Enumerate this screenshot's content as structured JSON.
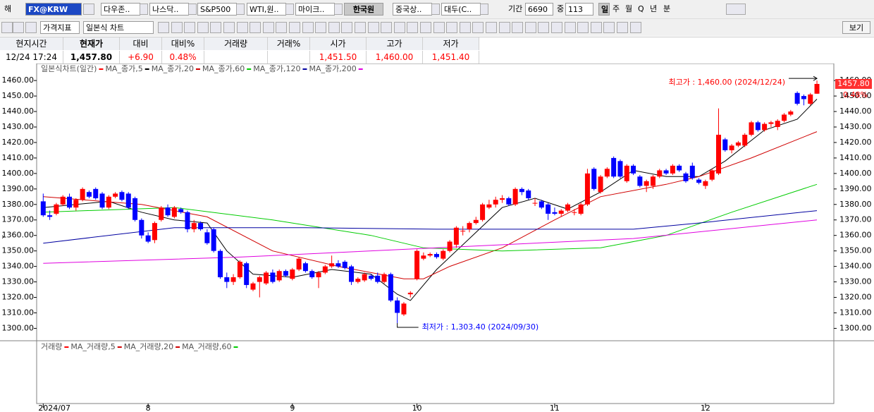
{
  "toolbar": {
    "row1": [
      "해",
      "FX@KRW",
      "다우존..",
      "나스닥..",
      "S&P500",
      "WTI,원..",
      "마이크..",
      "한국원",
      "중국상..",
      "대두(C..",
      "기간",
      "6690",
      "중",
      "113",
      "일",
      "주",
      "월",
      "Q",
      "년",
      "분"
    ],
    "row2": [
      "가격지표",
      "일본식 차트",
      "보기"
    ]
  },
  "quote": [
    {
      "header": "현지시간",
      "value": "12/24  17:24"
    },
    {
      "header": "현재가",
      "value": "1,457.80"
    },
    {
      "header": "대비",
      "value": "+6.90"
    },
    {
      "header": "대비%",
      "value": "0.48%"
    },
    {
      "header": "거래량"
    },
    {
      "header": "거래%"
    },
    {
      "header": "시가",
      "value": "1,451.50"
    },
    {
      "header": "고가",
      "value": "1,460.00"
    },
    {
      "header": "저가",
      "value": "1,451.40"
    }
  ],
  "chart_data": {
    "type": "candlestick",
    "title": "일본식차트(일간)",
    "up_color": "#ff0000",
    "down_color": "#0000ff",
    "title_marker_color": "#ff0000",
    "xlim": [
      -1,
      119.5
    ],
    "ylim": [
      1292,
      1471
    ],
    "yticks": [
      {
        "value": 1300,
        "label": "1300.00"
      },
      {
        "value": 1310,
        "label": "1310.00"
      },
      {
        "value": 1320,
        "label": "1320.00"
      },
      {
        "value": 1330,
        "label": "1330.00"
      },
      {
        "value": 1340,
        "label": "1340.00"
      },
      {
        "value": 1350,
        "label": "1350.00"
      },
      {
        "value": 1360,
        "label": "1360.00"
      },
      {
        "value": 1370,
        "label": "1370.00"
      },
      {
        "value": 1380,
        "label": "1380.00"
      },
      {
        "value": 1390,
        "label": "1390.00"
      },
      {
        "value": 1400,
        "label": "1400.00"
      },
      {
        "value": 1410,
        "label": "1410.00"
      },
      {
        "value": 1420,
        "label": "1420.00"
      },
      {
        "value": 1430,
        "label": "1430.00"
      },
      {
        "value": 1440,
        "label": "1440.00"
      },
      {
        "value": 1450,
        "label": "1450.00"
      },
      {
        "value": 1460,
        "label": "1460.00"
      }
    ],
    "xticks": [
      {
        "value": 0,
        "label": "2024/07"
      },
      {
        "value": 16,
        "label": "8"
      },
      {
        "value": 38,
        "label": "9"
      },
      {
        "value": 57,
        "label": "10"
      },
      {
        "value": 78,
        "label": "11"
      },
      {
        "value": 101,
        "label": "12"
      }
    ],
    "candles": [
      [
        1382,
        1387,
        1372,
        1373
      ],
      [
        1373,
        1376,
        1370,
        1372
      ],
      [
        1374,
        1381,
        1373,
        1380
      ],
      [
        1380,
        1386,
        1379,
        1385
      ],
      [
        1385,
        1387,
        1377,
        1378
      ],
      [
        1378,
        1384,
        1376,
        1383
      ],
      [
        1383,
        1391,
        1382,
        1390
      ],
      [
        1388,
        1389,
        1384,
        1385
      ],
      [
        1390,
        1391,
        1383,
        1384
      ],
      [
        1387,
        1388,
        1377,
        1378
      ],
      [
        1378,
        1386,
        1377,
        1385
      ],
      [
        1385,
        1388,
        1384,
        1387
      ],
      [
        1388,
        1389,
        1382,
        1383
      ],
      [
        1387,
        1388,
        1377,
        1378
      ],
      [
        1384,
        1385,
        1369,
        1370
      ],
      [
        1370,
        1371,
        1358,
        1360
      ],
      [
        1360,
        1362,
        1355,
        1356
      ],
      [
        1357,
        1369,
        1355,
        1368
      ],
      [
        1370,
        1379,
        1369,
        1378
      ],
      [
        1378,
        1380,
        1372,
        1373
      ],
      [
        1372,
        1379,
        1371,
        1378
      ],
      [
        1377,
        1378,
        1374,
        1375
      ],
      [
        1375,
        1376,
        1362,
        1364
      ],
      [
        1364,
        1370,
        1362,
        1368
      ],
      [
        1368,
        1369,
        1363,
        1364
      ],
      [
        1362,
        1364,
        1354,
        1355
      ],
      [
        1364,
        1365,
        1349,
        1350
      ],
      [
        1350,
        1351,
        1332,
        1333
      ],
      [
        1333,
        1336,
        1326,
        1330
      ],
      [
        1330,
        1335,
        1328,
        1333
      ],
      [
        1333,
        1344,
        1332,
        1343
      ],
      [
        1342,
        1343,
        1326,
        1328
      ],
      [
        1325,
        1330,
        1324,
        1329
      ],
      [
        1330,
        1334,
        1320,
        1333
      ],
      [
        1329,
        1337,
        1328,
        1336
      ],
      [
        1336,
        1338,
        1329,
        1330
      ],
      [
        1331,
        1338,
        1330,
        1337
      ],
      [
        1337,
        1338,
        1333,
        1334
      ],
      [
        1332,
        1339,
        1331,
        1338
      ],
      [
        1338,
        1346,
        1337,
        1345
      ],
      [
        1342,
        1343,
        1336,
        1337
      ],
      [
        1337,
        1338,
        1332,
        1333
      ],
      [
        1333,
        1337,
        1326,
        1336
      ],
      [
        1336,
        1341,
        1335,
        1340
      ],
      [
        1340,
        1347,
        1339,
        1342
      ],
      [
        1342,
        1344,
        1339,
        1340
      ],
      [
        1343,
        1344,
        1338,
        1339
      ],
      [
        1340,
        1341,
        1328,
        1330
      ],
      [
        1330,
        1333,
        1329,
        1332
      ],
      [
        1331,
        1336,
        1330,
        1335
      ],
      [
        1334,
        1335,
        1331,
        1332
      ],
      [
        1334,
        1336,
        1329,
        1330
      ],
      [
        1330,
        1336,
        1329,
        1335
      ],
      [
        1335,
        1336,
        1317,
        1318
      ],
      [
        1318,
        1320,
        1303.4,
        1310
      ],
      [
        1309,
        1317,
        1308,
        1316
      ],
      [
        1322,
        1324,
        1320,
        1323
      ],
      [
        1332,
        1351,
        1331,
        1350
      ],
      [
        1345,
        1349,
        1344,
        1347
      ],
      [
        1347,
        1349,
        1346,
        1348
      ],
      [
        1348,
        1349,
        1345,
        1346
      ],
      [
        1345,
        1351,
        1344,
        1350
      ],
      [
        1350,
        1357,
        1349,
        1356
      ],
      [
        1354,
        1366,
        1352,
        1365
      ],
      [
        1363,
        1366,
        1360,
        1363
      ],
      [
        1364,
        1369,
        1362,
        1368
      ],
      [
        1368,
        1372,
        1367,
        1370
      ],
      [
        1370,
        1381,
        1369,
        1380
      ],
      [
        1378,
        1383,
        1377,
        1380
      ],
      [
        1380,
        1385,
        1378,
        1383
      ],
      [
        1383,
        1386,
        1381,
        1384
      ],
      [
        1384,
        1385,
        1379,
        1380
      ],
      [
        1380,
        1391,
        1379,
        1390
      ],
      [
        1390,
        1391,
        1386,
        1388
      ],
      [
        1389,
        1390,
        1383,
        1384
      ],
      [
        1381,
        1384,
        1379,
        1381
      ],
      [
        1382,
        1383,
        1377,
        1378
      ],
      [
        1380,
        1381,
        1370,
        1374
      ],
      [
        1375,
        1378,
        1373,
        1374
      ],
      [
        1374,
        1377,
        1372,
        1376
      ],
      [
        1376,
        1381,
        1375,
        1380
      ],
      [
        1375,
        1377,
        1373,
        1375
      ],
      [
        1374,
        1381,
        1373,
        1380
      ],
      [
        1380,
        1403,
        1379,
        1400
      ],
      [
        1403,
        1404,
        1389,
        1390
      ],
      [
        1388,
        1399,
        1387,
        1398
      ],
      [
        1398,
        1404,
        1397,
        1403
      ],
      [
        1410,
        1411,
        1397,
        1398
      ],
      [
        1408,
        1409,
        1397,
        1398
      ],
      [
        1395,
        1406,
        1394,
        1405
      ],
      [
        1405,
        1406,
        1399,
        1400
      ],
      [
        1398,
        1399,
        1391,
        1392
      ],
      [
        1392,
        1396,
        1388,
        1395
      ],
      [
        1392,
        1399,
        1390,
        1398
      ],
      [
        1398,
        1403,
        1397,
        1402
      ],
      [
        1402,
        1403,
        1399,
        1400
      ],
      [
        1400,
        1406,
        1399,
        1405
      ],
      [
        1405,
        1406,
        1401,
        1402
      ],
      [
        1400,
        1401,
        1394,
        1395
      ],
      [
        1405,
        1407,
        1396,
        1397
      ],
      [
        1396,
        1397,
        1393,
        1394
      ],
      [
        1392,
        1396,
        1390,
        1395
      ],
      [
        1396,
        1403,
        1395,
        1402
      ],
      [
        1400,
        1442,
        1399,
        1425
      ],
      [
        1422,
        1423,
        1414,
        1415
      ],
      [
        1415,
        1419,
        1413,
        1418
      ],
      [
        1418,
        1421,
        1417,
        1420
      ],
      [
        1418,
        1426,
        1417,
        1425
      ],
      [
        1425,
        1434,
        1424,
        1433
      ],
      [
        1433,
        1434,
        1427,
        1428
      ],
      [
        1428,
        1433,
        1427,
        1432
      ],
      [
        1432,
        1434,
        1430,
        1433
      ],
      [
        1430,
        1435,
        1428,
        1434
      ],
      [
        1434,
        1439,
        1433,
        1438
      ],
      [
        1438,
        1441,
        1437,
        1440
      ],
      [
        1452,
        1453,
        1444,
        1445
      ],
      [
        1450,
        1451,
        1444,
        1448
      ],
      [
        1445,
        1452,
        1444,
        1451
      ],
      [
        1451.5,
        1460,
        1451.4,
        1457.8
      ]
    ],
    "series": [
      {
        "name": "MA_종가,5",
        "color": "#000000",
        "x": [
          0,
          10,
          15,
          20,
          25,
          28,
          32,
          38,
          44,
          50,
          54,
          56,
          60,
          65,
          70,
          75,
          80,
          85,
          90,
          95,
          100,
          104,
          110,
          115,
          118
        ],
        "values": [
          1378,
          1382,
          1375,
          1370,
          1368,
          1350,
          1335,
          1333,
          1338,
          1335,
          1322,
          1318,
          1338,
          1358,
          1378,
          1384,
          1377,
          1388,
          1402,
          1398,
          1398,
          1408,
          1428,
          1435,
          1448
        ]
      },
      {
        "name": "MA_종가,20",
        "color": "#d00000",
        "x": [
          0,
          15,
          25,
          35,
          45,
          55,
          58,
          62,
          70,
          78,
          85,
          95,
          100,
          108,
          118
        ],
        "values": [
          1385,
          1380,
          1372,
          1350,
          1340,
          1332,
          1332,
          1340,
          1352,
          1370,
          1385,
          1393,
          1398,
          1410,
          1427
        ]
      },
      {
        "name": "MA_종가,60",
        "color": "#00cc00",
        "x": [
          0,
          20,
          35,
          50,
          58,
          70,
          85,
          95,
          105,
          118
        ],
        "values": [
          1375,
          1378,
          1370,
          1360,
          1352,
          1350,
          1352,
          1360,
          1375,
          1393
        ]
      },
      {
        "name": "MA_종가,120",
        "color": "#0000a0",
        "x": [
          0,
          20,
          40,
          60,
          90,
          100,
          118
        ],
        "values": [
          1355,
          1365,
          1365,
          1364,
          1364,
          1368,
          1376
        ]
      },
      {
        "name": "MA_종가,200",
        "color": "#e000e0",
        "x": [
          0,
          30,
          60,
          90,
          118
        ],
        "values": [
          1342,
          1346,
          1352,
          1358,
          1370
        ]
      }
    ],
    "annotations": [
      {
        "text": "최고가 : 1,460.00 (2024/12/24)",
        "x": 118,
        "value": 1460,
        "color": "#ff0000"
      },
      {
        "text": "최저가 : 1,303.40 (2024/09/30)",
        "x": 54,
        "value": 1303.4,
        "color": "#0000ff"
      }
    ],
    "last_price": {
      "value": 1457.8,
      "label": "1457.80"
    },
    "change_label": "0.48%"
  },
  "volume_pane": {
    "title": "거래량",
    "title_marker_color": "#ff0000",
    "series": [
      {
        "name": "MA_거래량,5",
        "color": "#d00000"
      },
      {
        "name": "MA_거래량,20",
        "color": "#d00000"
      },
      {
        "name": "MA_거래량,60",
        "color": "#00cc00"
      }
    ]
  }
}
